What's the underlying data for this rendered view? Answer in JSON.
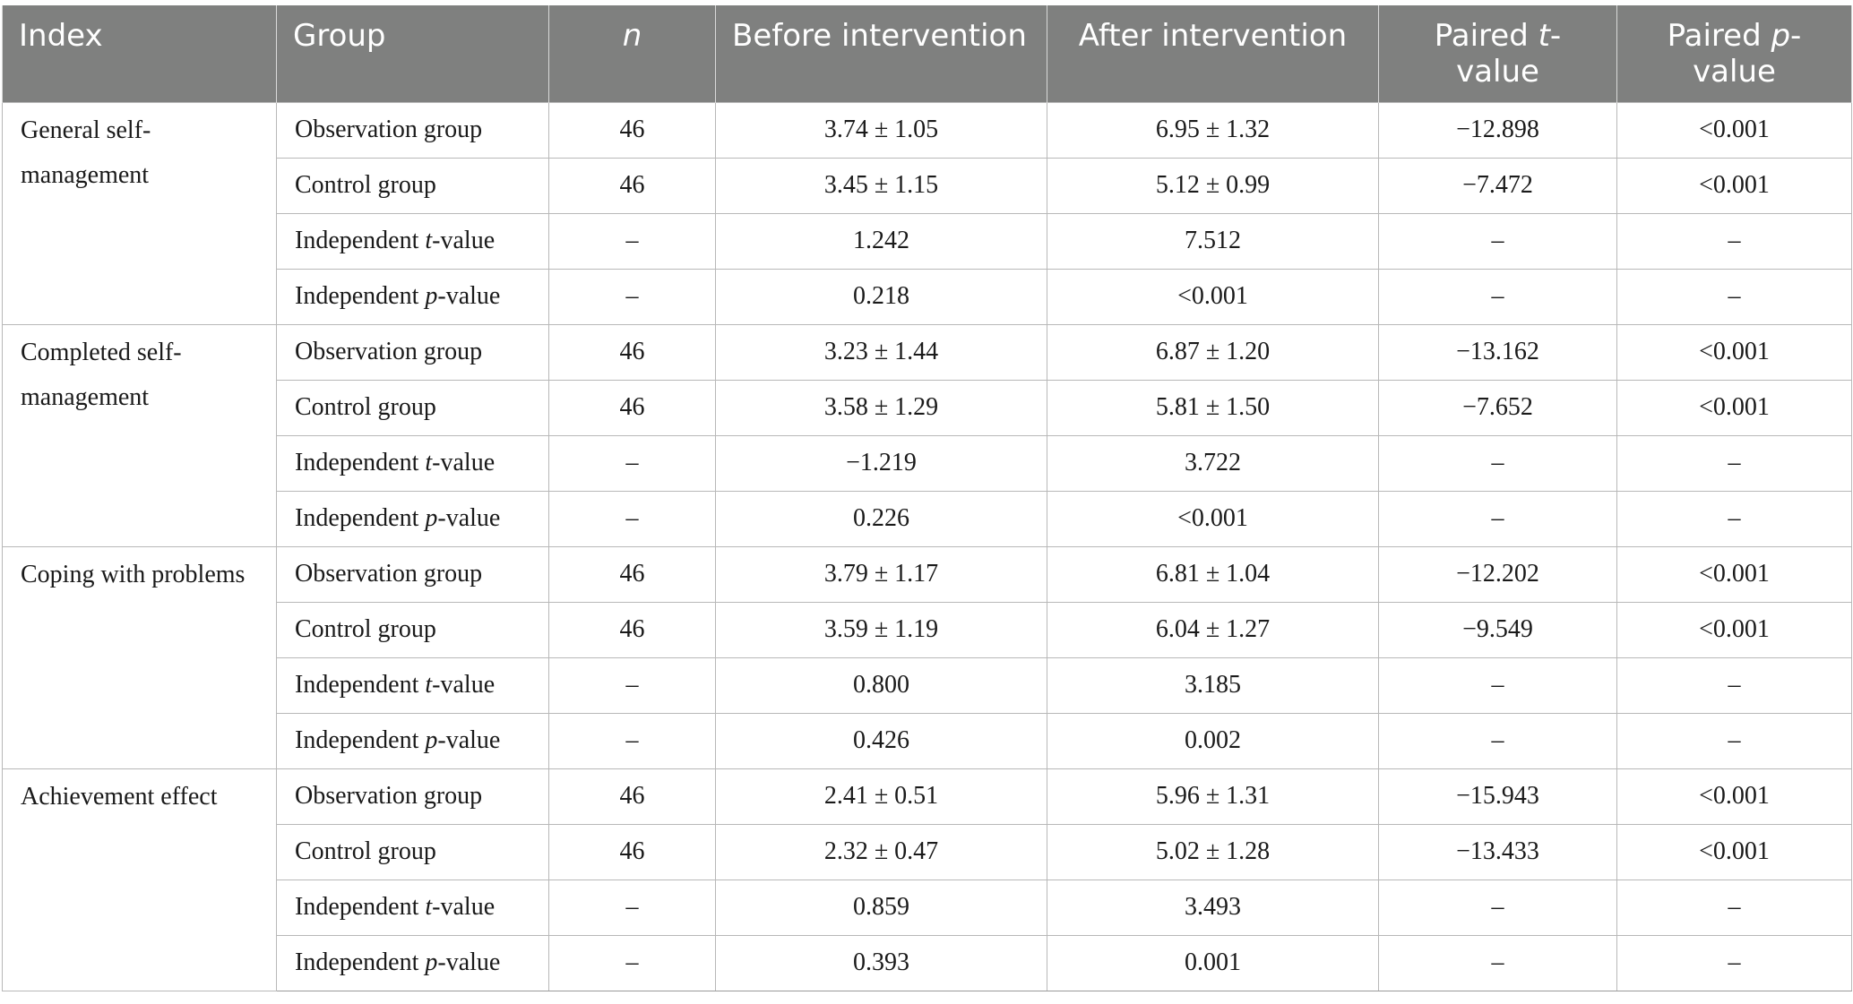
{
  "columns": {
    "index": "Index",
    "group": "Group",
    "n": "n",
    "before": "Before intervention",
    "after": "After intervention",
    "paired_t_prefix": "Paired ",
    "paired_t_var": "t",
    "paired_t_suffix": "-value",
    "paired_p_prefix": "Paired ",
    "paired_p_var": "p",
    "paired_p_suffix": "-value"
  },
  "sections": [
    {
      "index": "General self-management",
      "rows": [
        {
          "group": "Observation group",
          "n": "46",
          "before": "3.74 ± 1.05",
          "after": "6.95 ± 1.32",
          "paired_t": "−12.898",
          "paired_p": "<0.001"
        },
        {
          "group": "Control group",
          "n": "46",
          "before": "3.45 ± 1.15",
          "after": "5.12 ± 0.99",
          "paired_t": "−7.472",
          "paired_p": "<0.001"
        },
        {
          "group_prefix": "Independent ",
          "group_var": "t",
          "group_suffix": "-value",
          "n": "–",
          "before": "1.242",
          "after": "7.512",
          "paired_t": "–",
          "paired_p": "–"
        },
        {
          "group_prefix": "Independent ",
          "group_var": "p",
          "group_suffix": "-value",
          "n": "–",
          "before": "0.218",
          "after": "<0.001",
          "paired_t": "–",
          "paired_p": "–"
        }
      ]
    },
    {
      "index": "Completed self-management",
      "rows": [
        {
          "group": "Observation group",
          "n": "46",
          "before": "3.23 ± 1.44",
          "after": "6.87 ± 1.20",
          "paired_t": "−13.162",
          "paired_p": "<0.001"
        },
        {
          "group": "Control group",
          "n": "46",
          "before": "3.58 ± 1.29",
          "after": "5.81 ± 1.50",
          "paired_t": "−7.652",
          "paired_p": "<0.001"
        },
        {
          "group_prefix": "Independent ",
          "group_var": "t",
          "group_suffix": "-value",
          "n": "–",
          "before": "−1.219",
          "after": "3.722",
          "paired_t": "–",
          "paired_p": "–"
        },
        {
          "group_prefix": "Independent ",
          "group_var": "p",
          "group_suffix": "-value",
          "n": "–",
          "before": "0.226",
          "after": "<0.001",
          "paired_t": "–",
          "paired_p": "–"
        }
      ]
    },
    {
      "index": "Coping with problems",
      "rows": [
        {
          "group": "Observation group",
          "n": "46",
          "before": "3.79 ± 1.17",
          "after": "6.81 ± 1.04",
          "paired_t": "−12.202",
          "paired_p": "<0.001"
        },
        {
          "group": "Control group",
          "n": "46",
          "before": "3.59 ± 1.19",
          "after": "6.04 ± 1.27",
          "paired_t": "−9.549",
          "paired_p": "<0.001"
        },
        {
          "group_prefix": "Independent ",
          "group_var": "t",
          "group_suffix": "-value",
          "n": "–",
          "before": "0.800",
          "after": "3.185",
          "paired_t": "–",
          "paired_p": "–"
        },
        {
          "group_prefix": "Independent ",
          "group_var": "p",
          "group_suffix": "-value",
          "n": "–",
          "before": "0.426",
          "after": "0.002",
          "paired_t": "–",
          "paired_p": "–"
        }
      ]
    },
    {
      "index": "Achievement effect",
      "rows": [
        {
          "group": "Observation group",
          "n": "46",
          "before": "2.41 ± 0.51",
          "after": "5.96 ± 1.31",
          "paired_t": "−15.943",
          "paired_p": "<0.001"
        },
        {
          "group": "Control group",
          "n": "46",
          "before": "2.32 ± 0.47",
          "after": "5.02 ± 1.28",
          "paired_t": "−13.433",
          "paired_p": "<0.001"
        },
        {
          "group_prefix": "Independent ",
          "group_var": "t",
          "group_suffix": "-value",
          "n": "–",
          "before": "0.859",
          "after": "3.493",
          "paired_t": "–",
          "paired_p": "–"
        },
        {
          "group_prefix": "Independent ",
          "group_var": "p",
          "group_suffix": "-value",
          "n": "–",
          "before": "0.393",
          "after": "0.001",
          "paired_t": "–",
          "paired_p": "–"
        }
      ]
    }
  ]
}
